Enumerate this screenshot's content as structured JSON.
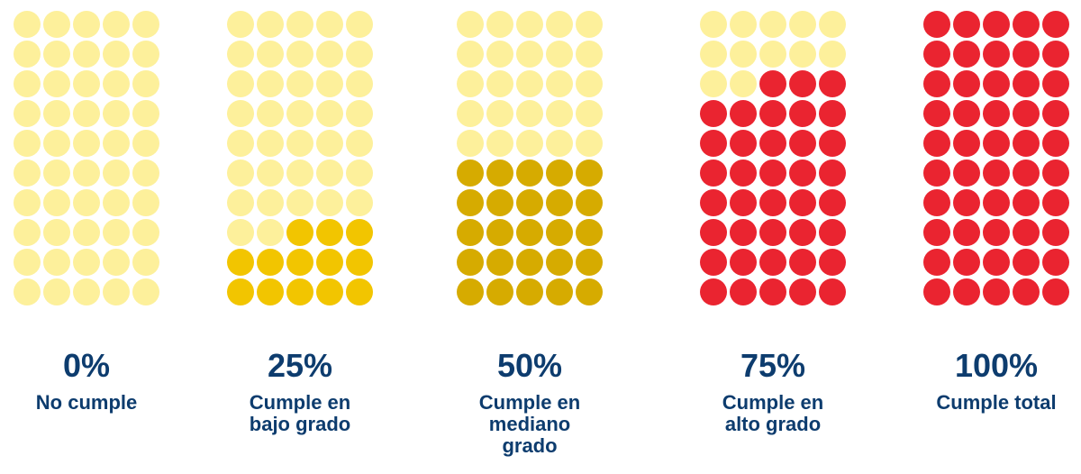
{
  "chart_data": {
    "type": "waffle",
    "categories": [
      [
        "No cumple"
      ],
      [
        "Cumple en",
        "bajo grado"
      ],
      [
        "Cumple en",
        "mediano",
        "grado"
      ],
      [
        "Cumple en",
        "alto grado"
      ],
      [
        "Cumple total"
      ]
    ],
    "values": [
      0,
      25,
      50,
      75,
      100
    ],
    "value_labels": [
      "0%",
      "25%",
      "50%",
      "75%",
      "100%"
    ],
    "colors": [
      "#f2c500",
      "#f2c500",
      "#d6ab00",
      "#ea2430",
      "#ea2430"
    ],
    "empty_color": "#fdf09b",
    "ylim": [
      0,
      100
    ]
  }
}
